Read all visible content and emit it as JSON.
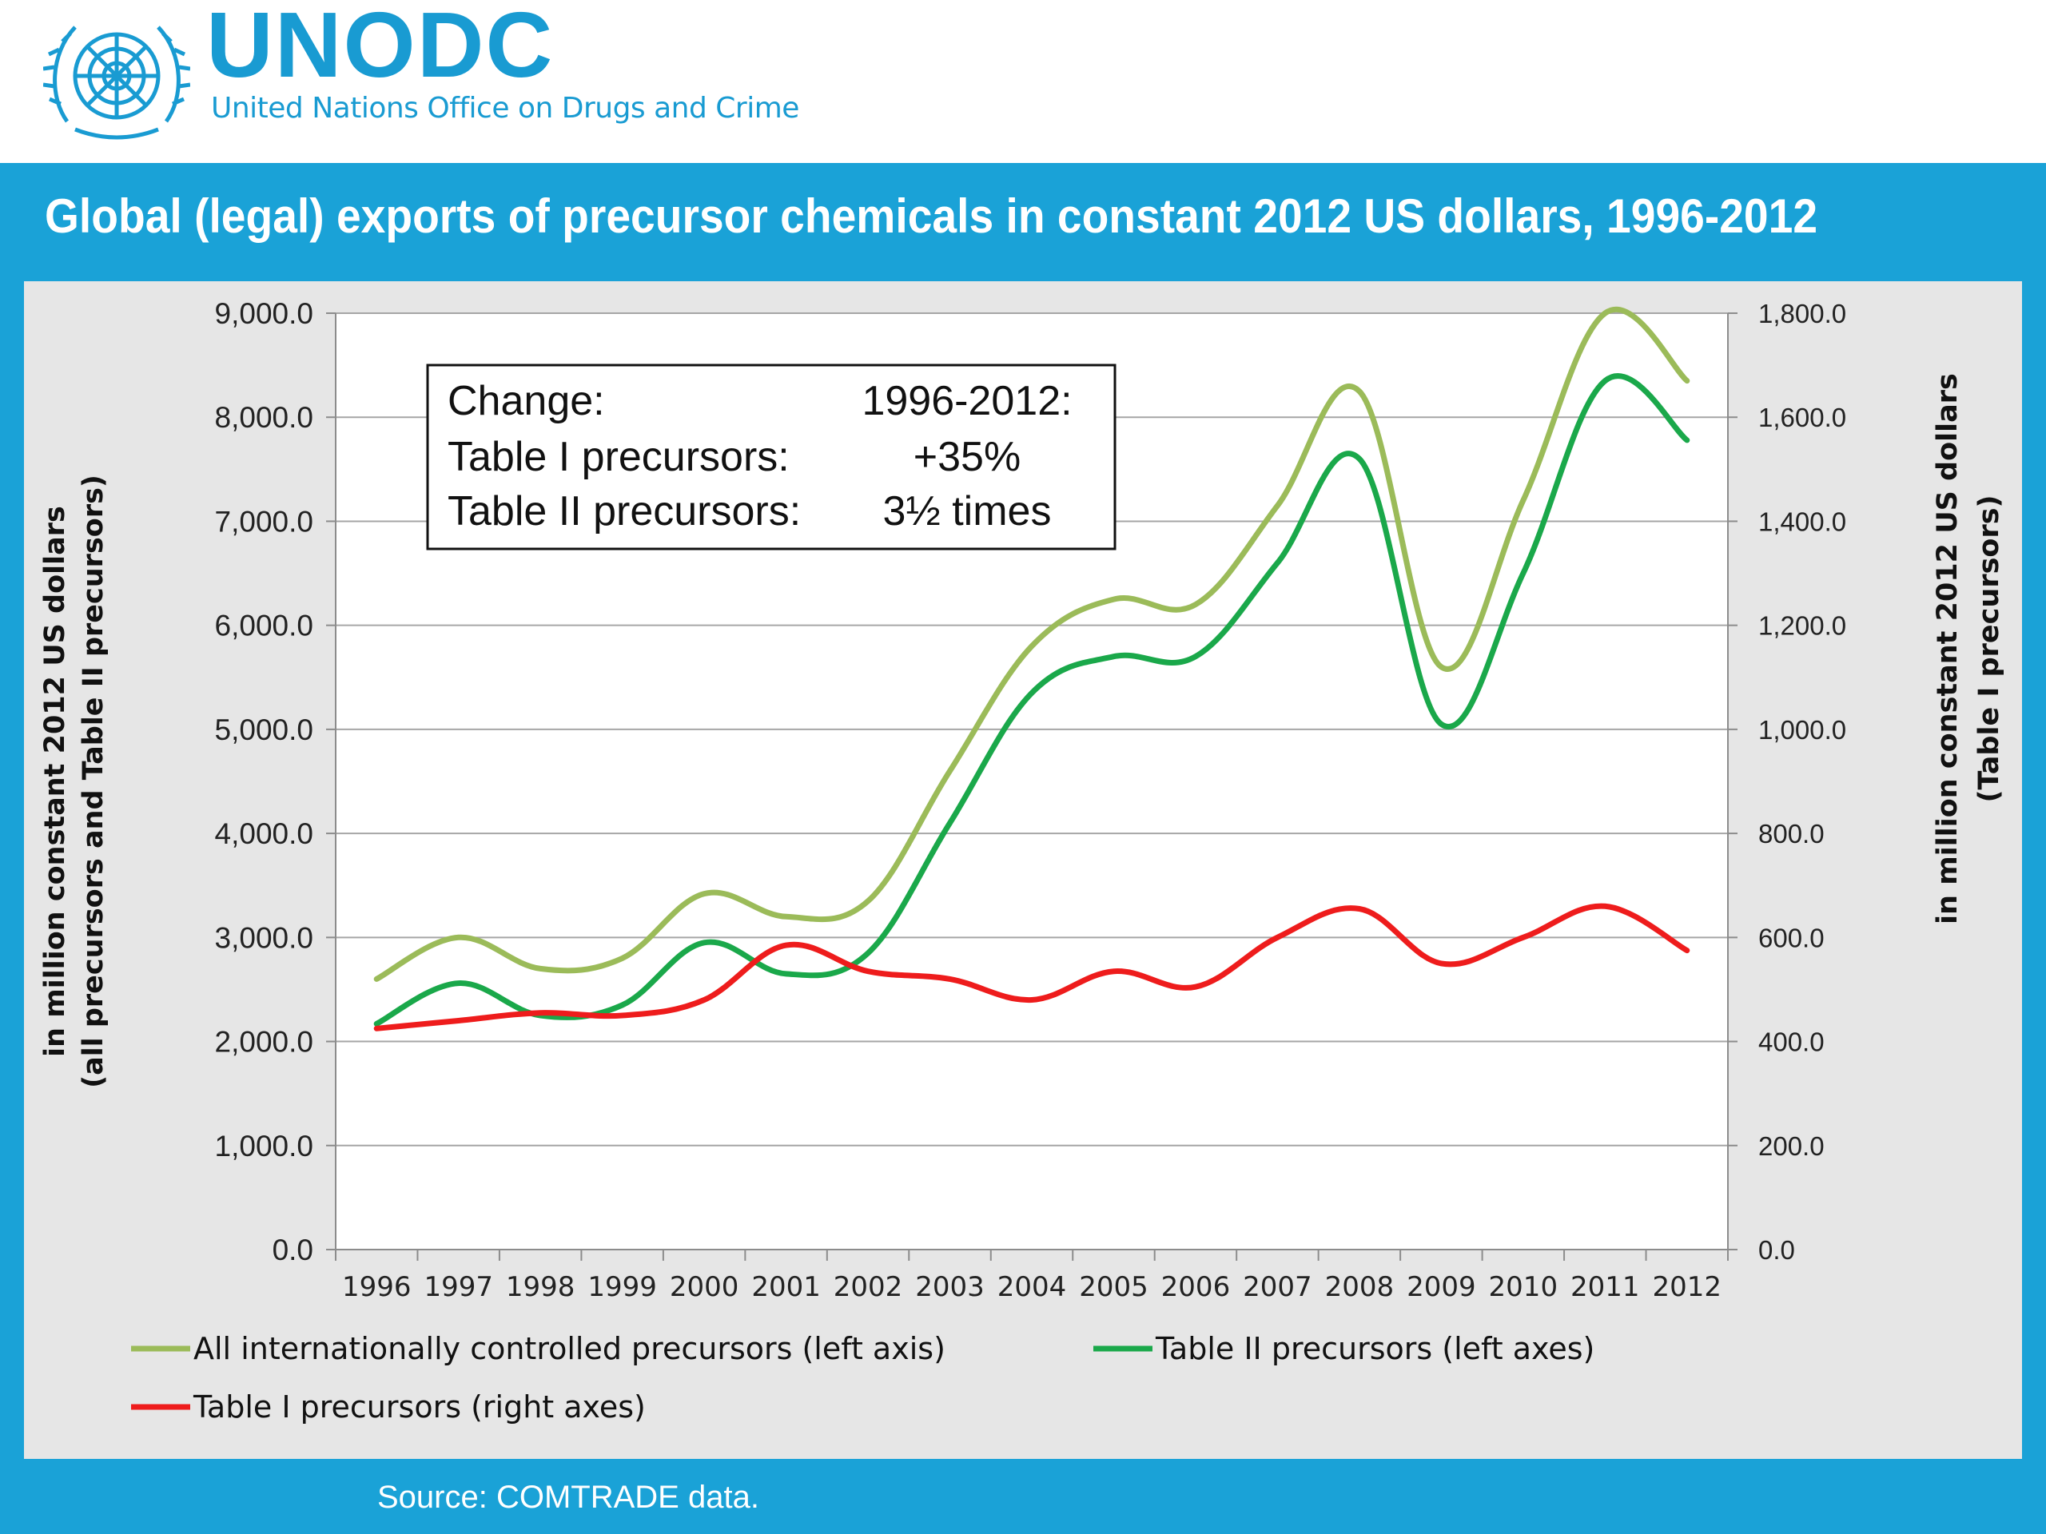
{
  "header": {
    "logo_text": "UNODC",
    "logo_subtitle": "United Nations Office on Drugs and Crime",
    "emblem_icon": "un-emblem-icon"
  },
  "page_title": "Global (legal) exports of precursor chemicals in constant 2012 US dollars, 1996-2012",
  "source": "Source: COMTRADE data.",
  "colors": {
    "header_bg": "#ffffff",
    "brand": "#199bd2",
    "band": "#1aa2d7",
    "panel": "#e6e6e6",
    "plot_bg": "#ffffff",
    "gridline": "#a6a6a6",
    "all_precursors": "#9bbb59",
    "table_ii": "#1aa84a",
    "table_i": "#ee1c1c"
  },
  "chart_data": {
    "type": "line",
    "title": "",
    "x": [
      "1996",
      "1997",
      "1998",
      "1999",
      "2000",
      "2001",
      "2002",
      "2003",
      "2004",
      "2005",
      "2006",
      "2007",
      "2008",
      "2009",
      "2010",
      "2011",
      "2012"
    ],
    "xlabel": "",
    "y_left": {
      "label_line1": "in million constant 2012 US dollars",
      "label_line2": "(all precursors  and Table II precursors)",
      "ylim": [
        0,
        9000
      ],
      "ticks": [
        "9,000.0",
        "8,000.0",
        "7,000.0",
        "6,000.0",
        "5,000.0",
        "4,000.0",
        "3,000.0",
        "2,000.0",
        "1,000.0",
        "0.0"
      ]
    },
    "y_right": {
      "label_line1": "in million constant 2012 US dollars",
      "label_line2": "(Table I precursors)",
      "ylim": [
        0,
        1800
      ],
      "ticks": [
        "1,800.0",
        "1,600.0",
        "1,400.0",
        "1,200.0",
        "1,000.0",
        "800.0",
        "600.0",
        "400.0",
        "200.0",
        "0.0"
      ]
    },
    "grid": true,
    "series": [
      {
        "name": "All internationally controlled precursors (left axis)",
        "axis": "left",
        "color": "#9bbb59",
        "values": [
          2600,
          3000,
          2700,
          2800,
          3420,
          3200,
          3350,
          4600,
          5800,
          6250,
          6200,
          7150,
          8250,
          5600,
          7200,
          9000,
          8350
        ]
      },
      {
        "name": "Table II precursors (left axes)",
        "axis": "left",
        "color": "#1aa84a",
        "values": [
          2170,
          2560,
          2250,
          2350,
          2950,
          2650,
          2850,
          4100,
          5350,
          5700,
          5700,
          6600,
          7600,
          5050,
          6500,
          8350,
          7780
        ]
      },
      {
        "name": "Table I precursors (right axes)",
        "axis": "right",
        "color": "#ee1c1c",
        "values": [
          425,
          440,
          455,
          450,
          480,
          585,
          535,
          520,
          480,
          535,
          505,
          600,
          655,
          550,
          600,
          660,
          575
        ]
      }
    ],
    "legend_position": "bottom",
    "annotation": {
      "rows": [
        [
          "Change:",
          "1996-2012:"
        ],
        [
          "Table I precursors:",
          "+35%"
        ],
        [
          "Table II precursors:",
          "3½ times"
        ]
      ]
    }
  }
}
